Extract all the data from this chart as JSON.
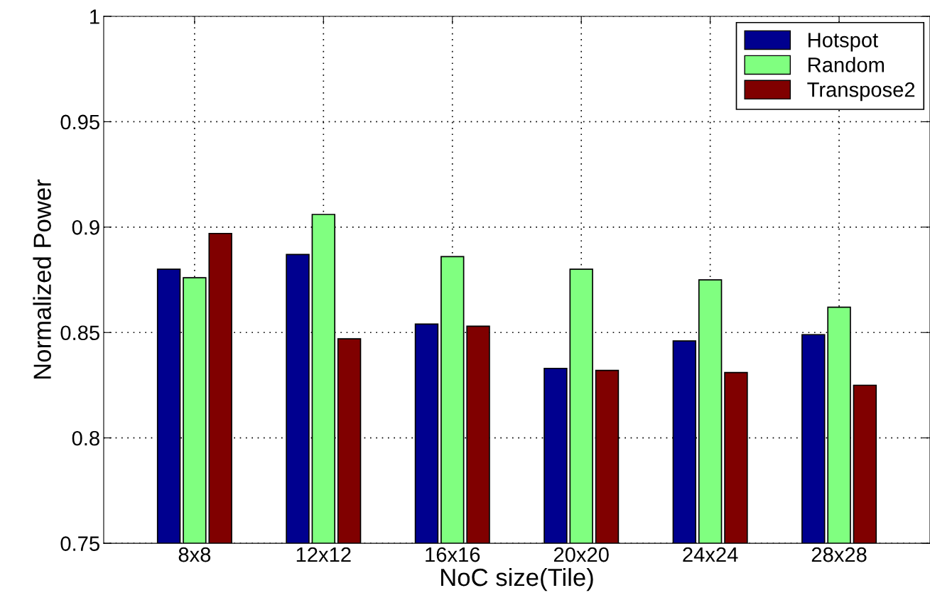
{
  "chart_data": {
    "type": "bar",
    "xlabel": "NoC size(Tile)",
    "ylabel": "Normalized Power",
    "categories": [
      "8x8",
      "12x12",
      "16x16",
      "20x20",
      "24x24",
      "28x28"
    ],
    "series": [
      {
        "name": "Hotspot",
        "color": "#00008f",
        "values": [
          0.88,
          0.887,
          0.854,
          0.833,
          0.846,
          0.849
        ]
      },
      {
        "name": "Random",
        "color": "#80ff80",
        "values": [
          0.876,
          0.906,
          0.886,
          0.88,
          0.875,
          0.862
        ]
      },
      {
        "name": "Transpose2",
        "color": "#800000",
        "values": [
          0.897,
          0.847,
          0.853,
          0.832,
          0.831,
          0.825
        ]
      }
    ],
    "ylim": [
      0.75,
      1
    ],
    "yticks": [
      {
        "value": 0.75,
        "label": "0.75"
      },
      {
        "value": 0.8,
        "label": "0.8"
      },
      {
        "value": 0.85,
        "label": "0.85"
      },
      {
        "value": 0.9,
        "label": "0.9"
      },
      {
        "value": 0.95,
        "label": "0.95"
      },
      1
    ],
    "grid": true,
    "legend": "top right"
  }
}
